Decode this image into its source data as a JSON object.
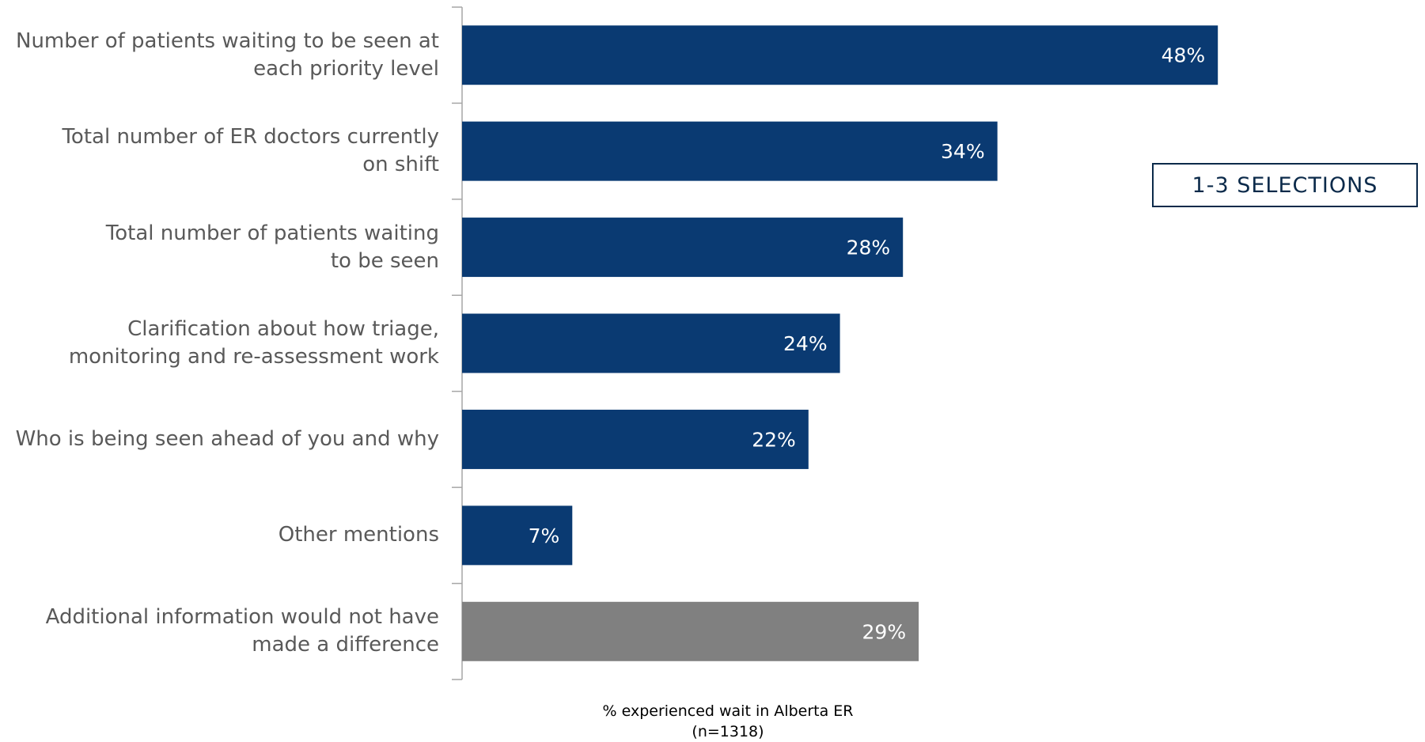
{
  "chart_data": {
    "type": "bar",
    "orientation": "horizontal",
    "categories": [
      "Number of patients waiting to be seen at each priority level",
      "Total number of ER doctors currently on shift",
      "Total number of patients waiting to be seen",
      "Clarification about how triage, monitoring and re-assessment work",
      "Who is being seen ahead of you and why",
      "Other mentions",
      "Additional information would not have made a difference"
    ],
    "category_lines": [
      "Number of patients waiting to be seen at\neach priority level",
      "Total number of ER doctors currently\non shift",
      "Total number of patients waiting\nto be seen",
      "Clarification about how triage,\nmonitoring and re-assessment work",
      "Who is being seen ahead of you and why",
      "Other mentions",
      "Additional information would not have\nmade a difference"
    ],
    "values": [
      48,
      34,
      28,
      24,
      22,
      7,
      29
    ],
    "value_labels": [
      "48%",
      "34%",
      "28%",
      "24%",
      "22%",
      "7%",
      "29%"
    ],
    "bar_colors": [
      "#0a3a72",
      "#0a3a72",
      "#0a3a72",
      "#0a3a72",
      "#0a3a72",
      "#0a3a72",
      "#808080"
    ],
    "xlabel": "% experienced wait in Alberta ER",
    "xlabel_sub": "(n=1318)",
    "xlim": [
      0,
      60
    ],
    "grid": false
  },
  "annotation": {
    "text": "1-3 SELECTIONS"
  }
}
